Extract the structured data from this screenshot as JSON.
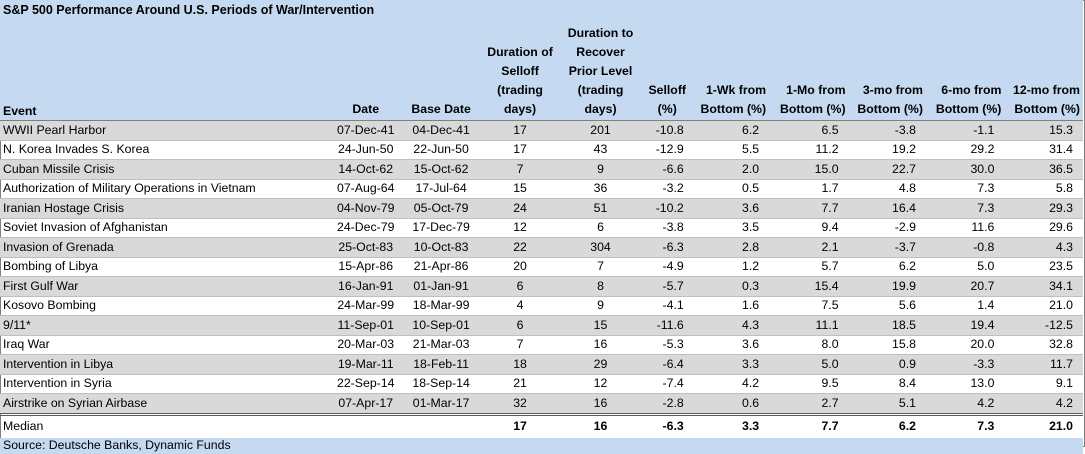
{
  "title": "S&P 500 Performance Around U.S. Periods of War/Intervention",
  "headers": {
    "event": "Event",
    "date": "Date",
    "base_date": "Base Date",
    "duration_selloff": "Duration of Selloff (trading days)",
    "duration_recover": "Duration to Recover Prior Level (trading days)",
    "selloff": "Selloff (%)",
    "wk1": "1-Wk from Bottom (%)",
    "mo1": "1-Mo from Bottom (%)",
    "mo3": "3-mo from Bottom (%)",
    "mo6": "6-mo from Bottom (%)",
    "mo12": "12-mo from Bottom (%)"
  },
  "rows": [
    {
      "event": "WWII Pearl Harbor",
      "date": "07-Dec-41",
      "base_date": "04-Dec-41",
      "dur_selloff": "17",
      "dur_recover": "201",
      "selloff": "-10.8",
      "wk1": "6.2",
      "mo1": "6.5",
      "mo3": "-3.8",
      "mo6": "-1.1",
      "mo12": "15.3"
    },
    {
      "event": "N. Korea Invades S. Korea",
      "date": "24-Jun-50",
      "base_date": "22-Jun-50",
      "dur_selloff": "17",
      "dur_recover": "43",
      "selloff": "-12.9",
      "wk1": "5.5",
      "mo1": "11.2",
      "mo3": "19.2",
      "mo6": "29.2",
      "mo12": "31.4"
    },
    {
      "event": "Cuban Missile Crisis",
      "date": "14-Oct-62",
      "base_date": "15-Oct-62",
      "dur_selloff": "7",
      "dur_recover": "9",
      "selloff": "-6.6",
      "wk1": "2.0",
      "mo1": "15.0",
      "mo3": "22.7",
      "mo6": "30.0",
      "mo12": "36.5"
    },
    {
      "event": "Authorization of Military Operations in Vietnam",
      "date": "07-Aug-64",
      "base_date": "17-Jul-64",
      "dur_selloff": "15",
      "dur_recover": "36",
      "selloff": "-3.2",
      "wk1": "0.5",
      "mo1": "1.7",
      "mo3": "4.8",
      "mo6": "7.3",
      "mo12": "5.8"
    },
    {
      "event": "Iranian Hostage Crisis",
      "date": "04-Nov-79",
      "base_date": "05-Oct-79",
      "dur_selloff": "24",
      "dur_recover": "51",
      "selloff": "-10.2",
      "wk1": "3.6",
      "mo1": "7.7",
      "mo3": "16.4",
      "mo6": "7.3",
      "mo12": "29.3"
    },
    {
      "event": "Soviet Invasion of Afghanistan",
      "date": "24-Dec-79",
      "base_date": "17-Dec-79",
      "dur_selloff": "12",
      "dur_recover": "6",
      "selloff": "-3.8",
      "wk1": "3.5",
      "mo1": "9.4",
      "mo3": "-2.9",
      "mo6": "11.6",
      "mo12": "29.6"
    },
    {
      "event": "Invasion of Grenada",
      "date": "25-Oct-83",
      "base_date": "10-Oct-83",
      "dur_selloff": "22",
      "dur_recover": "304",
      "selloff": "-6.3",
      "wk1": "2.8",
      "mo1": "2.1",
      "mo3": "-3.7",
      "mo6": "-0.8",
      "mo12": "4.3"
    },
    {
      "event": "Bombing of Libya",
      "date": "15-Apr-86",
      "base_date": "21-Apr-86",
      "dur_selloff": "20",
      "dur_recover": "7",
      "selloff": "-4.9",
      "wk1": "1.2",
      "mo1": "5.7",
      "mo3": "6.2",
      "mo6": "5.0",
      "mo12": "23.5"
    },
    {
      "event": "First Gulf War",
      "date": "16-Jan-91",
      "base_date": "01-Jan-91",
      "dur_selloff": "6",
      "dur_recover": "8",
      "selloff": "-5.7",
      "wk1": "0.3",
      "mo1": "15.4",
      "mo3": "19.9",
      "mo6": "20.7",
      "mo12": "34.1"
    },
    {
      "event": "Kosovo Bombing",
      "date": "24-Mar-99",
      "base_date": "18-Mar-99",
      "dur_selloff": "4",
      "dur_recover": "9",
      "selloff": "-4.1",
      "wk1": "1.6",
      "mo1": "7.5",
      "mo3": "5.6",
      "mo6": "1.4",
      "mo12": "21.0"
    },
    {
      "event": "9/11*",
      "date": "11-Sep-01",
      "base_date": "10-Sep-01",
      "dur_selloff": "6",
      "dur_recover": "15",
      "selloff": "-11.6",
      "wk1": "4.3",
      "mo1": "11.1",
      "mo3": "18.5",
      "mo6": "19.4",
      "mo12": "-12.5"
    },
    {
      "event": "Iraq War",
      "date": "20-Mar-03",
      "base_date": "21-Mar-03",
      "dur_selloff": "7",
      "dur_recover": "16",
      "selloff": "-5.3",
      "wk1": "3.6",
      "mo1": "8.0",
      "mo3": "15.8",
      "mo6": "20.0",
      "mo12": "32.8"
    },
    {
      "event": "Intervention in Libya",
      "date": "19-Mar-11",
      "base_date": "18-Feb-11",
      "dur_selloff": "18",
      "dur_recover": "29",
      "selloff": "-6.4",
      "wk1": "3.3",
      "mo1": "5.0",
      "mo3": "0.9",
      "mo6": "-3.3",
      "mo12": "11.7"
    },
    {
      "event": "Intervention in Syria",
      "date": "22-Sep-14",
      "base_date": "18-Sep-14",
      "dur_selloff": "21",
      "dur_recover": "12",
      "selloff": "-7.4",
      "wk1": "4.2",
      "mo1": "9.5",
      "mo3": "8.4",
      "mo6": "13.0",
      "mo12": "9.1"
    },
    {
      "event": "Airstrike on Syrian Airbase",
      "date": "07-Apr-17",
      "base_date": "01-Mar-17",
      "dur_selloff": "32",
      "dur_recover": "16",
      "selloff": "-2.8",
      "wk1": "0.6",
      "mo1": "2.7",
      "mo3": "5.1",
      "mo6": "4.2",
      "mo12": "4.2"
    }
  ],
  "median": {
    "event": "Median",
    "dur_selloff": "17",
    "dur_recover": "16",
    "selloff": "-6.3",
    "wk1": "3.3",
    "mo1": "7.7",
    "mo3": "6.2",
    "mo6": "7.3",
    "mo12": "21.0"
  },
  "source": "Source: Deutsche Banks, Dynamic Funds",
  "colors": {
    "header_bg": "#c5d9f1",
    "shade_row": "#d9d9d9"
  }
}
